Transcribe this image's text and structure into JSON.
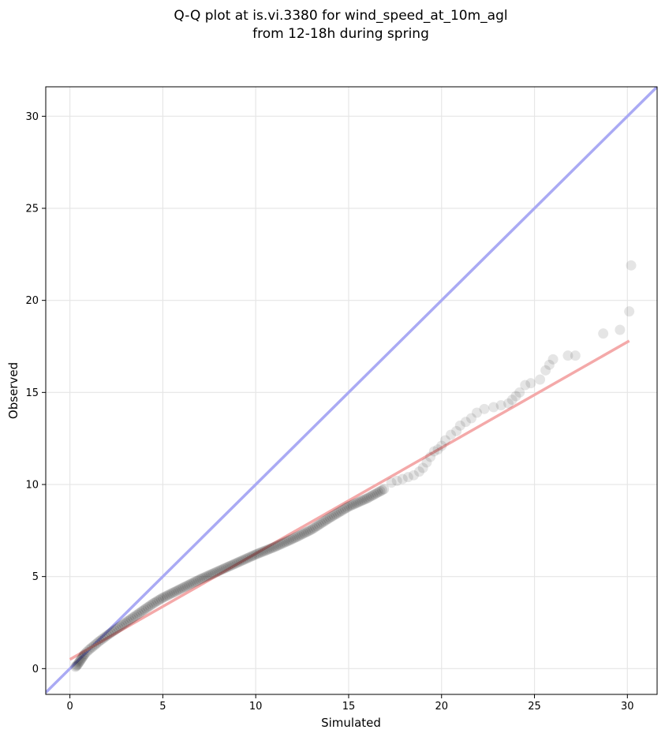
{
  "chart_data": {
    "type": "scatter",
    "title": [
      "Q-Q plot at is.vi.3380 for wind_speed_at_10m_agl",
      "from 12-18h during spring"
    ],
    "xlabel": "Simulated",
    "ylabel": "Observed",
    "xlim": [
      -1.3,
      31.6
    ],
    "ylim": [
      -1.4,
      31.6
    ],
    "xticks": [
      0,
      5,
      10,
      15,
      20,
      25,
      30
    ],
    "yticks": [
      0,
      5,
      10,
      15,
      20,
      25,
      30
    ],
    "grid": true,
    "colors": {
      "points": "#000000",
      "identity_line": "#aaaaf4",
      "fit_line": "#f4a9a9",
      "grid": "#e6e6e6"
    },
    "identity_line": {
      "x": [
        -1.3,
        31.6
      ],
      "y": [
        -1.3,
        31.6
      ]
    },
    "fit_line": {
      "x": [
        0.0,
        30.1
      ],
      "y": [
        0.5,
        17.8
      ]
    },
    "quantile_curve": {
      "x": [
        0.3,
        0.4,
        0.5,
        0.6,
        0.7,
        0.8,
        1.0,
        1.3,
        1.6,
        2.0,
        2.5,
        3.0,
        3.5,
        4.0,
        4.5,
        5.0,
        6.0,
        7.0,
        8.0,
        9.0,
        10.0,
        11.0,
        12.0,
        13.0,
        14.0,
        15.0,
        16.0,
        17.0
      ],
      "y": [
        0.1,
        0.2,
        0.35,
        0.5,
        0.65,
        0.8,
        1.0,
        1.25,
        1.5,
        1.8,
        2.15,
        2.5,
        2.85,
        3.2,
        3.55,
        3.85,
        4.35,
        4.85,
        5.3,
        5.75,
        6.2,
        6.6,
        7.05,
        7.55,
        8.2,
        8.8,
        9.25,
        9.8
      ]
    },
    "tail_points": {
      "x": [
        17.3,
        17.6,
        17.9,
        18.2,
        18.5,
        18.8,
        19.0,
        19.2,
        19.4,
        19.6,
        19.8,
        20.0,
        20.2,
        20.5,
        20.8,
        21.0,
        21.3,
        21.6,
        21.9,
        22.3,
        22.8,
        23.2,
        23.6,
        23.8,
        24.0,
        24.2,
        24.5,
        24.8,
        25.3,
        25.6,
        25.8,
        26.0,
        26.8,
        27.2,
        28.7,
        29.6,
        30.1,
        30.2
      ],
      "y": [
        10.1,
        10.2,
        10.3,
        10.4,
        10.5,
        10.7,
        10.9,
        11.2,
        11.5,
        11.8,
        11.9,
        12.1,
        12.4,
        12.7,
        12.9,
        13.2,
        13.4,
        13.6,
        13.9,
        14.1,
        14.2,
        14.3,
        14.4,
        14.6,
        14.8,
        15.0,
        15.4,
        15.5,
        15.7,
        16.2,
        16.5,
        16.8,
        17.0,
        17.0,
        18.2,
        18.4,
        19.4,
        21.9
      ]
    }
  }
}
